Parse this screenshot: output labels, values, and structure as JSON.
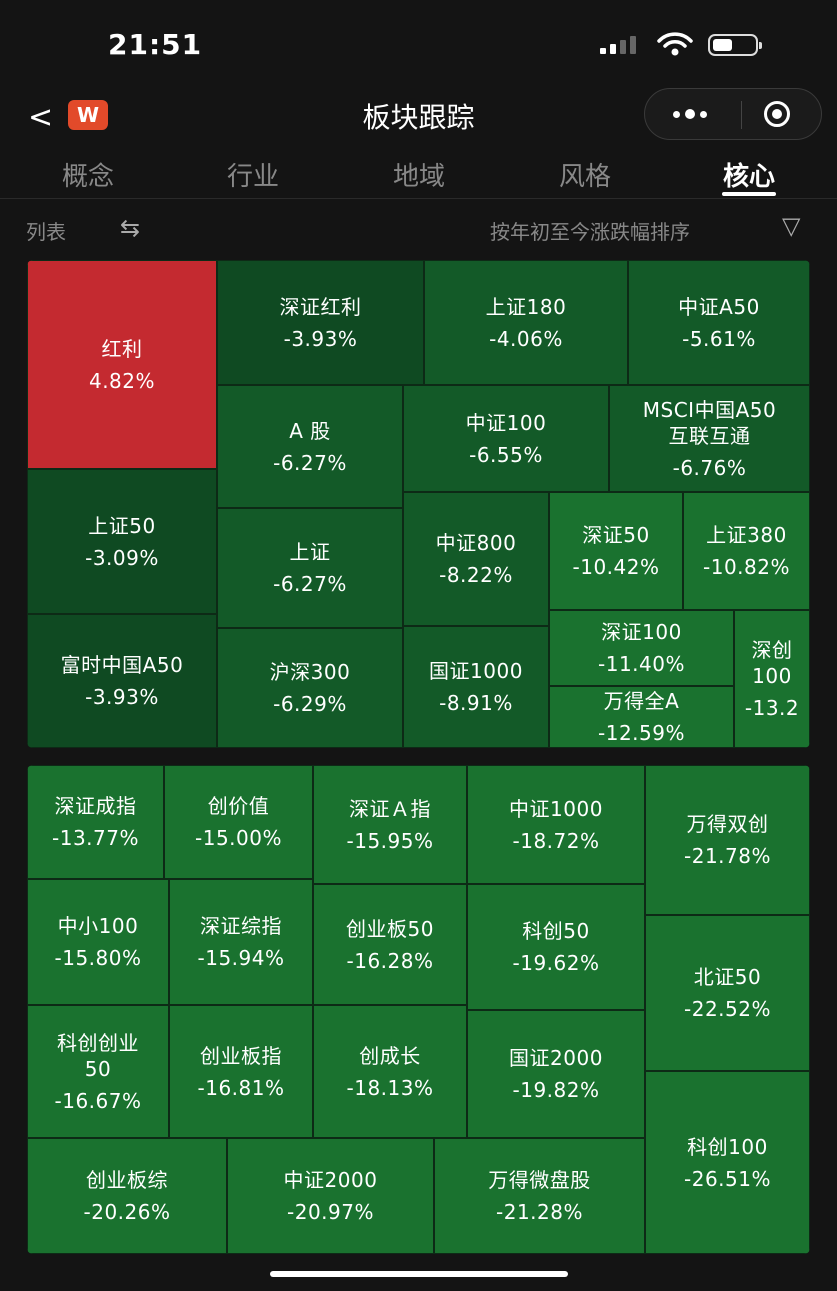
{
  "status_bar": {
    "time": "21:51"
  },
  "header": {
    "back_glyph": "<",
    "logo_text": "W",
    "title": "板块跟踪"
  },
  "tabs": [
    {
      "label": "概念",
      "active": false
    },
    {
      "label": "行业",
      "active": false
    },
    {
      "label": "地域",
      "active": false
    },
    {
      "label": "风格",
      "active": false
    },
    {
      "label": "核心",
      "active": true
    }
  ],
  "toolbar": {
    "list_label": "列表",
    "swap_icon": "swap-icon",
    "sort_label": "按年初至今涨跌幅排序",
    "filter_icon": "filter-icon"
  },
  "colors": {
    "up": "#c42a30",
    "down_dark": "#0f4a22",
    "down_mid": "#135a28",
    "down_bright": "#1a722f",
    "background": "#141414"
  },
  "panel1": [
    {
      "name": "红利",
      "change": "4.82%",
      "tone": "up"
    },
    {
      "name": "深证红利",
      "change": "-3.93%",
      "tone": "dark"
    },
    {
      "name": "上证180",
      "change": "-4.06%",
      "tone": "mid"
    },
    {
      "name": "中证A50",
      "change": "-5.61%",
      "tone": "mid"
    },
    {
      "name": "上证50",
      "change": "-3.09%",
      "tone": "dark"
    },
    {
      "name": "A 股",
      "change": "-6.27%",
      "tone": "mid"
    },
    {
      "name": "中证100",
      "change": "-6.55%",
      "tone": "mid"
    },
    {
      "name": "MSCI中国A50\n互联互通",
      "change": "-6.76%",
      "tone": "mid"
    },
    {
      "name": "上证",
      "change": "-6.27%",
      "tone": "mid"
    },
    {
      "name": "中证800",
      "change": "-8.22%",
      "tone": "mid"
    },
    {
      "name": "深证50",
      "change": "-10.42%",
      "tone": "bright"
    },
    {
      "name": "上证380",
      "change": "-10.82%",
      "tone": "bright"
    },
    {
      "name": "富时中国A50",
      "change": "-3.93%",
      "tone": "dark"
    },
    {
      "name": "沪深300",
      "change": "-6.29%",
      "tone": "mid"
    },
    {
      "name": "国证1000",
      "change": "-8.91%",
      "tone": "mid"
    },
    {
      "name": "深证100",
      "change": "-11.40%",
      "tone": "bright"
    },
    {
      "name": "万得全A",
      "change": "-12.59%",
      "tone": "bright"
    },
    {
      "name": "深创\n100",
      "change": "-13.2",
      "tone": "bright"
    }
  ],
  "panel2": [
    {
      "name": "深证成指",
      "change": "-13.77%",
      "tone": "bright"
    },
    {
      "name": "创价值",
      "change": "-15.00%",
      "tone": "bright"
    },
    {
      "name": "深证Ａ指",
      "change": "-15.95%",
      "tone": "bright"
    },
    {
      "name": "中证1000",
      "change": "-18.72%",
      "tone": "bright"
    },
    {
      "name": "万得双创",
      "change": "-21.78%",
      "tone": "bright"
    },
    {
      "name": "中小100",
      "change": "-15.80%",
      "tone": "bright"
    },
    {
      "name": "深证综指",
      "change": "-15.94%",
      "tone": "bright"
    },
    {
      "name": "创业板50",
      "change": "-16.28%",
      "tone": "bright"
    },
    {
      "name": "科创50",
      "change": "-19.62%",
      "tone": "bright"
    },
    {
      "name": "北证50",
      "change": "-22.52%",
      "tone": "bright"
    },
    {
      "name": "科创创业\n50",
      "change": "-16.67%",
      "tone": "bright"
    },
    {
      "name": "创业板指",
      "change": "-16.81%",
      "tone": "bright"
    },
    {
      "name": "创成长",
      "change": "-18.13%",
      "tone": "bright"
    },
    {
      "name": "国证2000",
      "change": "-19.82%",
      "tone": "bright"
    },
    {
      "name": "科创100",
      "change": "-26.51%",
      "tone": "bright"
    },
    {
      "name": "创业板综",
      "change": "-20.26%",
      "tone": "bright"
    },
    {
      "name": "中证2000",
      "change": "-20.97%",
      "tone": "bright"
    },
    {
      "name": "万得微盘股",
      "change": "-21.28%",
      "tone": "bright"
    }
  ]
}
